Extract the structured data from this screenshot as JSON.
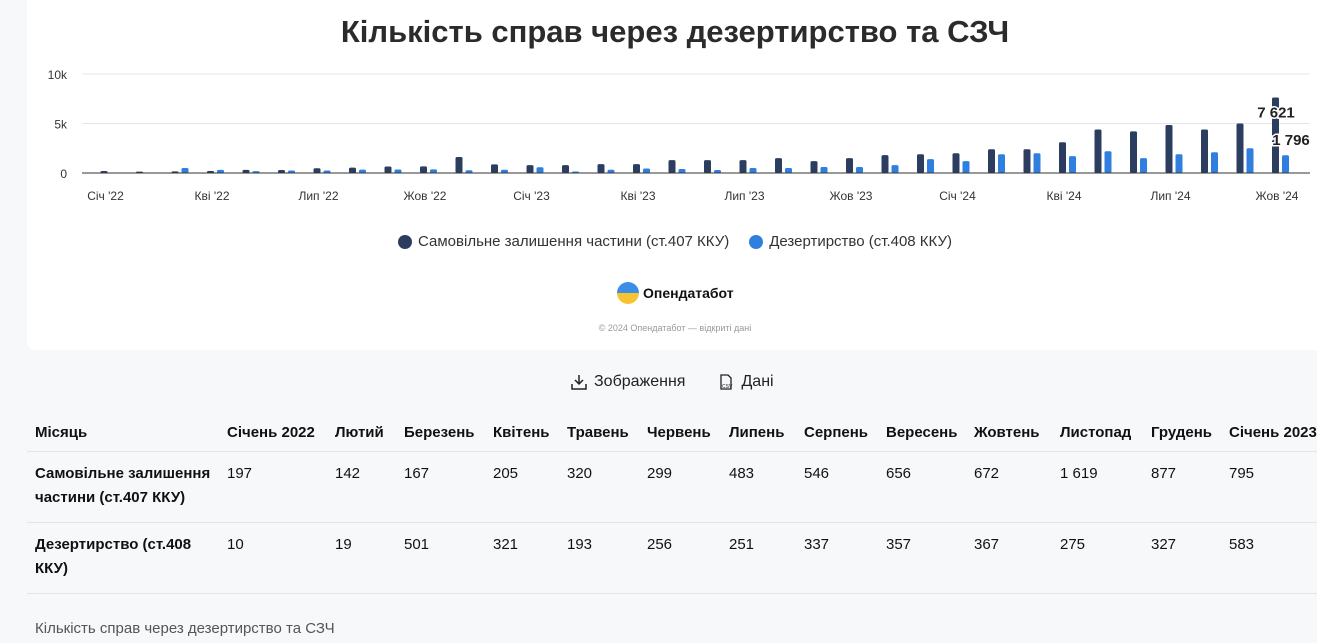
{
  "chart_data": {
    "type": "bar",
    "title": "Кількість справ через дезертирство та СЗЧ",
    "categories": [
      "2022-01",
      "2022-02",
      "2022-03",
      "2022-04",
      "2022-05",
      "2022-06",
      "2022-07",
      "2022-08",
      "2022-09",
      "2022-10",
      "2022-11",
      "2022-12",
      "2023-01",
      "2023-02",
      "2023-03",
      "2023-04",
      "2023-05",
      "2023-06",
      "2023-07",
      "2023-08",
      "2023-09",
      "2023-10",
      "2023-11",
      "2023-12",
      "2024-01",
      "2024-02",
      "2024-03",
      "2024-04",
      "2024-05",
      "2024-06",
      "2024-07",
      "2024-08",
      "2024-09",
      "2024-10"
    ],
    "x_tick_labels": [
      "Січ '22",
      "Кві '22",
      "Лип '22",
      "Жов '22",
      "Січ '23",
      "Кві '23",
      "Лип '23",
      "Жов '23",
      "Січ '24",
      "Кві '24",
      "Лип '24",
      "Жов '24"
    ],
    "y_tick_labels": [
      "0",
      "5k",
      "10k"
    ],
    "ylim": [
      0,
      10000
    ],
    "grid": true,
    "legend_position": "bottom",
    "series": [
      {
        "name": "Самовільне залишення частини (ст.407 ККУ)",
        "color": "#2c3e5f",
        "values": [
          197,
          142,
          167,
          205,
          320,
          299,
          483,
          546,
          656,
          672,
          1619,
          877,
          795,
          800,
          900,
          900,
          1300,
          1300,
          1300,
          1500,
          1200,
          1500,
          1800,
          1900,
          2000,
          2400,
          2400,
          3100,
          4400,
          4200,
          4850,
          4400,
          5000,
          7621
        ]
      },
      {
        "name": "Дезертирство (ст.408 ККУ)",
        "color": "#2f80de",
        "values": [
          10,
          19,
          501,
          321,
          193,
          256,
          251,
          337,
          357,
          367,
          275,
          327,
          583,
          150,
          330,
          450,
          400,
          300,
          500,
          500,
          600,
          600,
          800,
          1400,
          1200,
          1900,
          2000,
          1700,
          2200,
          1500,
          1900,
          2100,
          2500,
          1796
        ]
      }
    ],
    "data_labels": [
      "7 621",
      "1 796"
    ]
  },
  "branding": {
    "name": "Опендатабот",
    "copyright": "© 2024 Опендатабот — відкриті дані"
  },
  "actions": {
    "image": "Зображення",
    "data": "Дані"
  },
  "table": {
    "headers": [
      "Місяць",
      "Січень 2022",
      "Лютий",
      "Березень",
      "Квітень",
      "Травень",
      "Червень",
      "Липень",
      "Серпень",
      "Вересень",
      "Жовтень",
      "Листопад",
      "Грудень",
      "Січень 2023"
    ],
    "rows": [
      {
        "label": "Самовільне залишення частини (ст.407 ККУ)",
        "values": [
          "197",
          "142",
          "167",
          "205",
          "320",
          "299",
          "483",
          "546",
          "656",
          "672",
          "1 619",
          "877",
          "795"
        ]
      },
      {
        "label": "Дезертирство (ст.408 ККУ)",
        "values": [
          "10",
          "19",
          "501",
          "321",
          "193",
          "256",
          "251",
          "337",
          "357",
          "367",
          "275",
          "327",
          "583"
        ]
      }
    ],
    "caption": "Кількість справ через дезертирство та СЗЧ"
  }
}
